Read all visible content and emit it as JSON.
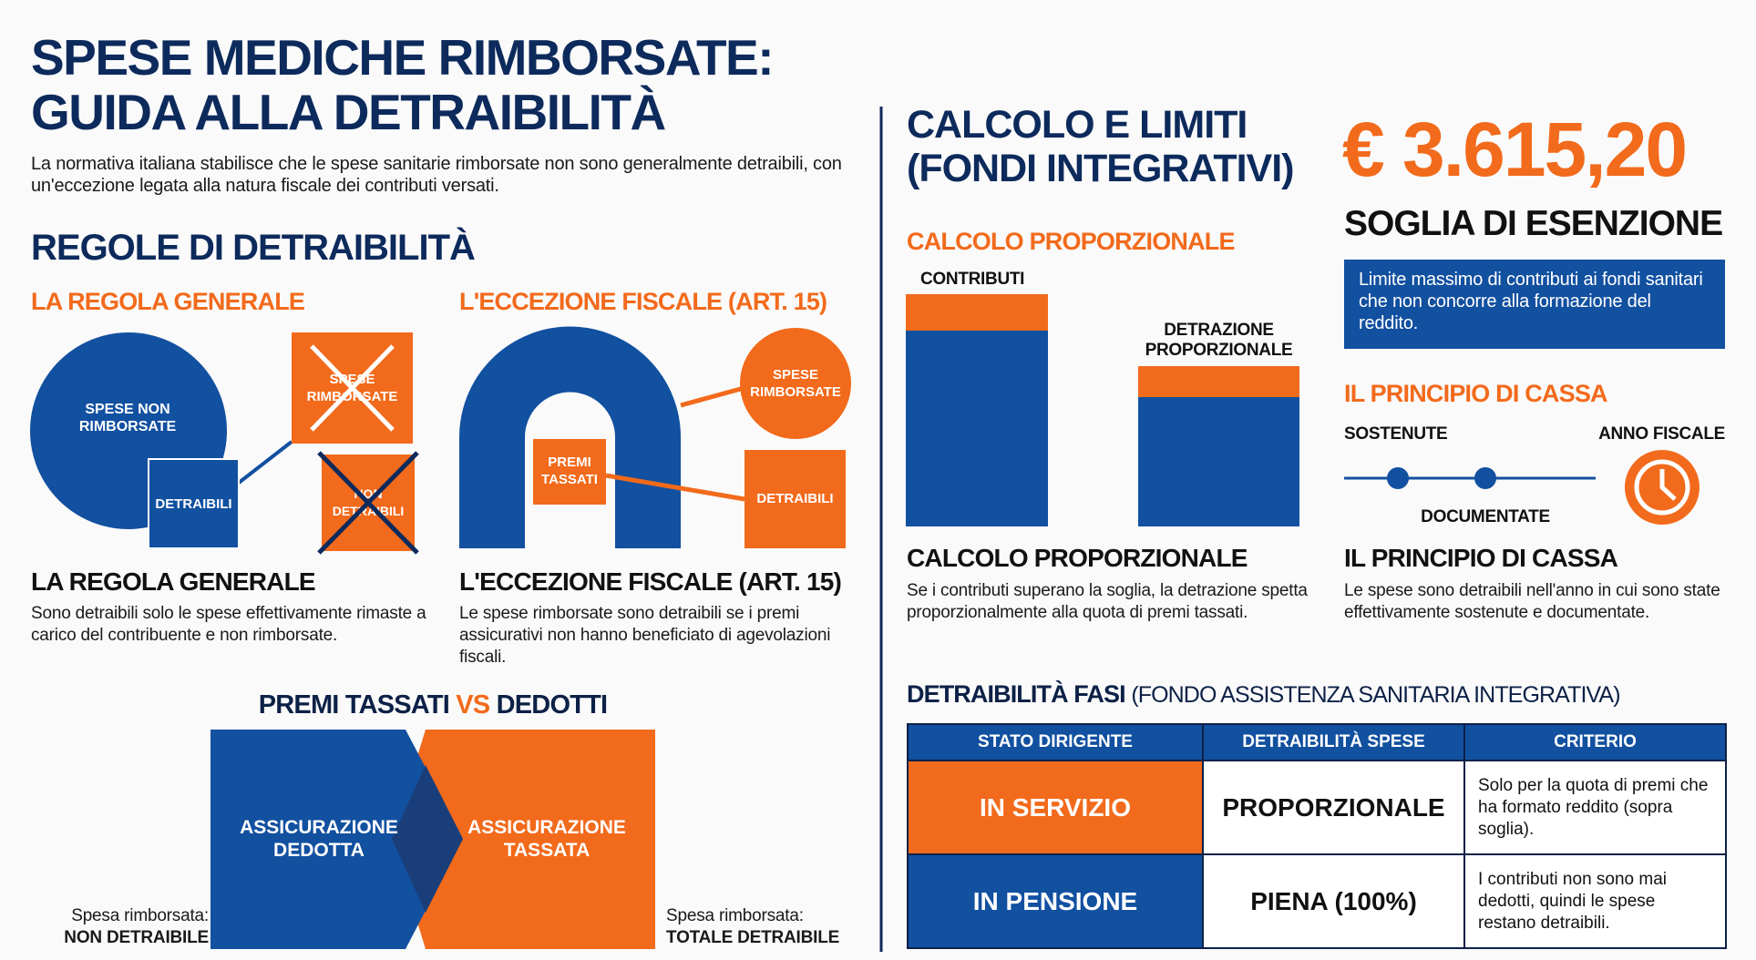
{
  "header": {
    "title": [
      "SPESE MEDICHE RIMBORSATE:",
      "GUIDA ALLA DETRAIBILITÀ"
    ],
    "intro": "La normativa italiana stabilisce che le spese sanitarie rimborsate non sono generalmente detraibili, con un'eccezione legata alla natura fiscale dei contributi versati."
  },
  "rules": {
    "heading": "REGOLE DI DETRAIBILITÀ",
    "general": {
      "label": "LA REGOLA GENERALE",
      "circle": "SPESE NON RIMBORSATE",
      "box": "DETRAIBILI",
      "crossed_top": "SPESE RIMBORSATE",
      "crossed_bottom": "NON DETRAIBILI",
      "title": "LA REGOLA GENERALE",
      "text": "Sono detraibili solo le spese effettivamente rimaste a carico del contribuente e non rimborsate."
    },
    "exception": {
      "label": "L'ECCEZIONE FISCALE (ART. 15)",
      "box": "PREMI TASSATI",
      "circle": "SPESE RIMBORSATE",
      "result": "DETRAIBILI",
      "title": "L'ECCEZIONE FISCALE (ART. 15)",
      "text": "Le spese rimborsate sono detraibili se i premi assicurativi non hanno beneficiato di agevolazioni fiscali."
    }
  },
  "comparison": {
    "title_start": "PREMI TASSATI",
    "title_vs": "VS",
    "title_end": "DEDOTTI",
    "left": {
      "label": "ASSICURAZIONE DEDOTTA",
      "note": "Spesa rimborsata:",
      "result": "NON DETRAIBILE"
    },
    "right": {
      "label": "ASSICURAZIONE TASSATA",
      "note": "Spesa rimborsata:",
      "result": "TOTALE DETRAIBILE"
    }
  },
  "limits": {
    "heading": [
      "CALCOLO E LIMITI",
      "(FONDI INTEGRATIVI)"
    ],
    "threshold": "€ 3.615,20",
    "threshold_title": "SOGLIA DI ESENZIONE",
    "threshold_text": "Limite massimo di contributi ai fondi sanitari che non concorre alla formazione del reddito.",
    "proportional": {
      "label": "CALCOLO PROPORZIONALE",
      "bar1": "CONTRIBUTI",
      "bar2": "DETRAZIONE PROPORZIONALE",
      "title": "CALCOLO PROPORZIONALE",
      "text": "Se i contributi superano la soglia, la detrazione spetta proporzionalmente alla quota di premi tassati."
    },
    "cash": {
      "label": "IL PRINCIPIO DI CASSA",
      "start": "SOSTENUTE",
      "middle": "DOCUMENTATE",
      "end": "ANNO FISCALE",
      "title": "IL PRINCIPIO DI CASSA",
      "text": "Le spese sono detraibili nell'anno in cui sono state effettivamente sostenute e documentate."
    }
  },
  "table": {
    "title_bold": "DETRAIBILITÀ FASI",
    "title_rest": "(FONDO ASSISTENZA SANITARIA INTEGRATIVA)",
    "columns": [
      "STATO DIRIGENTE",
      "DETRAIBILITÀ SPESE",
      "CRITERIO"
    ],
    "rows": [
      [
        "IN SERVIZIO",
        "PROPORZIONALE",
        "Solo per la quota di premi che ha formato reddito (sopra soglia)."
      ],
      [
        "IN PENSIONE",
        "PIENA (100%)",
        "I contributi non sono mai dedotti, quindi le spese restano detraibili."
      ]
    ]
  }
}
